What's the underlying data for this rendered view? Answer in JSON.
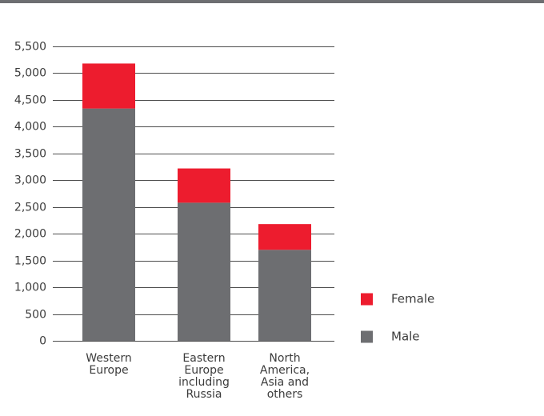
{
  "chart_data": {
    "type": "bar",
    "stacked": true,
    "categories": [
      [
        "Western",
        "Europe"
      ],
      [
        "Eastern",
        "Europe",
        "including",
        "Russia"
      ],
      [
        "North",
        "America,",
        "Asia and",
        "others"
      ]
    ],
    "series": [
      {
        "name": "Male",
        "values": [
          4340,
          2580,
          1700
        ],
        "color": "#6d6e71"
      },
      {
        "name": "Female",
        "values": [
          840,
          640,
          480
        ],
        "color": "#ed1c2e"
      }
    ],
    "ylim": [
      0,
      5500
    ],
    "yticks": [
      0,
      500,
      1000,
      1500,
      2000,
      2500,
      3000,
      3500,
      4000,
      4500,
      5000,
      5500
    ],
    "ytick_labels": [
      "0",
      "500",
      "1,000",
      "1,500",
      "2,000",
      "2,500",
      "3,000",
      "3,500",
      "4,000",
      "4,500",
      "5,000",
      "5,500"
    ],
    "grid": true,
    "legend_position": "right",
    "legend_order": [
      "Female",
      "Male"
    ],
    "xlabel": "",
    "ylabel": "",
    "title": ""
  },
  "colors": {
    "male": "#6d6e71",
    "female": "#ed1c2e",
    "grid": "#4d4d4d",
    "text": "#3c3c3c"
  }
}
